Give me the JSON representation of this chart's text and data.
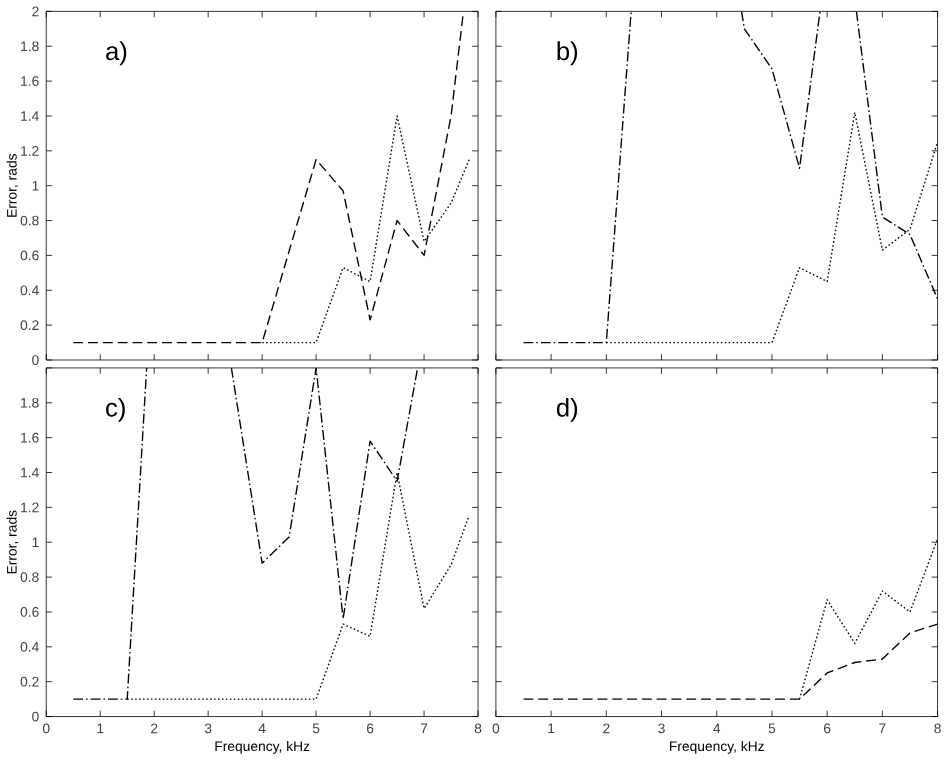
{
  "chart_data": [
    {
      "type": "line",
      "title": "a)",
      "ylabel": "Error, rads",
      "xlim": [
        0,
        8
      ],
      "ylim": [
        0,
        2
      ],
      "xticks": [
        0,
        1,
        2,
        3,
        4,
        5,
        6,
        7,
        8
      ],
      "yticks": [
        0,
        0.2,
        0.4,
        0.6,
        0.8,
        1,
        1.2,
        1.4,
        1.6,
        1.8,
        2
      ],
      "tick_labels": "y",
      "series": [
        {
          "color": "#000000",
          "line_style": "dashed",
          "x": [
            0.5,
            1,
            1.5,
            2,
            2.5,
            3,
            3.5,
            4,
            5,
            5.5,
            6,
            6.5,
            7,
            7.5,
            7.73
          ],
          "values": [
            0.1,
            0.1,
            0.1,
            0.1,
            0.1,
            0.1,
            0.1,
            0.1,
            1.15,
            0.97,
            0.23,
            0.8,
            0.6,
            1.4,
            2
          ]
        },
        {
          "color": "#000000",
          "line_style": "dotted",
          "x": [
            4,
            4.5,
            5,
            5.5,
            6,
            6.5,
            7,
            7.5,
            7.85
          ],
          "values": [
            0.1,
            0.1,
            0.1,
            0.53,
            0.45,
            1.4,
            0.68,
            0.9,
            1.16
          ]
        }
      ]
    },
    {
      "type": "line",
      "title": "b)",
      "xlim": [
        0,
        8
      ],
      "ylim": [
        0,
        2
      ],
      "xticks": [
        0,
        1,
        2,
        3,
        4,
        5,
        6,
        7,
        8
      ],
      "yticks": [
        0,
        0.2,
        0.4,
        0.6,
        0.8,
        1,
        1.2,
        1.4,
        1.6,
        1.8,
        2
      ],
      "tick_labels": false,
      "series": [
        {
          "color": "#000000",
          "line_style": "dashdot",
          "x": [
            0.5,
            1,
            1.5,
            2,
            2.45,
            3,
            4.45,
            4.5,
            5,
            5.5,
            5.87,
            6.2,
            6.53,
            7,
            7.5,
            8
          ],
          "values": [
            0.1,
            0.1,
            0.1,
            0.1,
            2,
            null,
            2,
            1.9,
            1.67,
            1.1,
            2,
            null,
            2,
            0.82,
            0.72,
            0.35
          ]
        },
        {
          "color": "#000000",
          "line_style": "dotted",
          "x": [
            2,
            2.5,
            3,
            3.5,
            4,
            4.5,
            5,
            5.5,
            6,
            6.5,
            7,
            7.5,
            8
          ],
          "values": [
            0.1,
            0.1,
            0.1,
            0.1,
            0.1,
            0.1,
            0.1,
            0.53,
            0.45,
            1.42,
            0.63,
            0.75,
            1.25
          ]
        }
      ]
    },
    {
      "type": "line",
      "title": "c)",
      "ylabel": "Error, rads",
      "xlabel": "Frequency, kHz",
      "xlim": [
        0,
        8
      ],
      "ylim": [
        0,
        2
      ],
      "xticks": [
        0,
        1,
        2,
        3,
        4,
        5,
        6,
        7,
        8
      ],
      "yticks": [
        0,
        0.2,
        0.4,
        0.6,
        0.8,
        1,
        1.2,
        1.4,
        1.6,
        1.8,
        {
          "value": 2,
          "label": null
        }
      ],
      "series": [
        {
          "color": "#000000",
          "line_style": "dashdot",
          "x": [
            0.5,
            1,
            1.5,
            1.86,
            2.5,
            3.43,
            4,
            4.5,
            5,
            5.5,
            6,
            6.5,
            6.88
          ],
          "values": [
            0.1,
            0.1,
            0.1,
            2,
            null,
            2,
            0.88,
            1.03,
            2,
            0.56,
            1.58,
            1.35,
            2
          ]
        },
        {
          "color": "#000000",
          "line_style": "dotted",
          "x": [
            1.5,
            2,
            2.5,
            3,
            3.5,
            4,
            4.5,
            5,
            5.5,
            6,
            6.5,
            7,
            7.5,
            7.83
          ],
          "values": [
            0.1,
            0.1,
            0.1,
            0.1,
            0.1,
            0.1,
            0.1,
            0.1,
            0.53,
            0.46,
            1.4,
            0.62,
            0.87,
            1.15
          ]
        }
      ]
    },
    {
      "type": "line",
      "title": "d)",
      "xlabel": "Frequency, kHz",
      "xlim": [
        0,
        8
      ],
      "ylim": [
        0,
        2
      ],
      "xticks": [
        0,
        1,
        2,
        3,
        4,
        5,
        6,
        7,
        8
      ],
      "yticks": [
        0,
        0.2,
        0.4,
        0.6,
        0.8,
        1,
        1.2,
        1.4,
        1.6,
        1.8,
        2
      ],
      "tick_labels": "x",
      "series": [
        {
          "color": "#000000",
          "line_style": "dashed",
          "x": [
            0.5,
            1,
            1.5,
            2,
            2.5,
            3,
            3.5,
            4,
            4.5,
            5,
            5.5,
            6,
            6.5,
            7,
            7.5,
            8
          ],
          "values": [
            0.1,
            0.1,
            0.1,
            0.1,
            0.1,
            0.1,
            0.1,
            0.1,
            0.1,
            0.1,
            0.1,
            0.25,
            0.31,
            0.33,
            0.48,
            0.53
          ]
        },
        {
          "color": "#000000",
          "line_style": "dotted",
          "x": [
            5.5,
            6,
            6.5,
            7,
            7.5,
            8
          ],
          "values": [
            0.1,
            0.67,
            0.42,
            0.72,
            0.6,
            1.02
          ]
        }
      ]
    }
  ]
}
